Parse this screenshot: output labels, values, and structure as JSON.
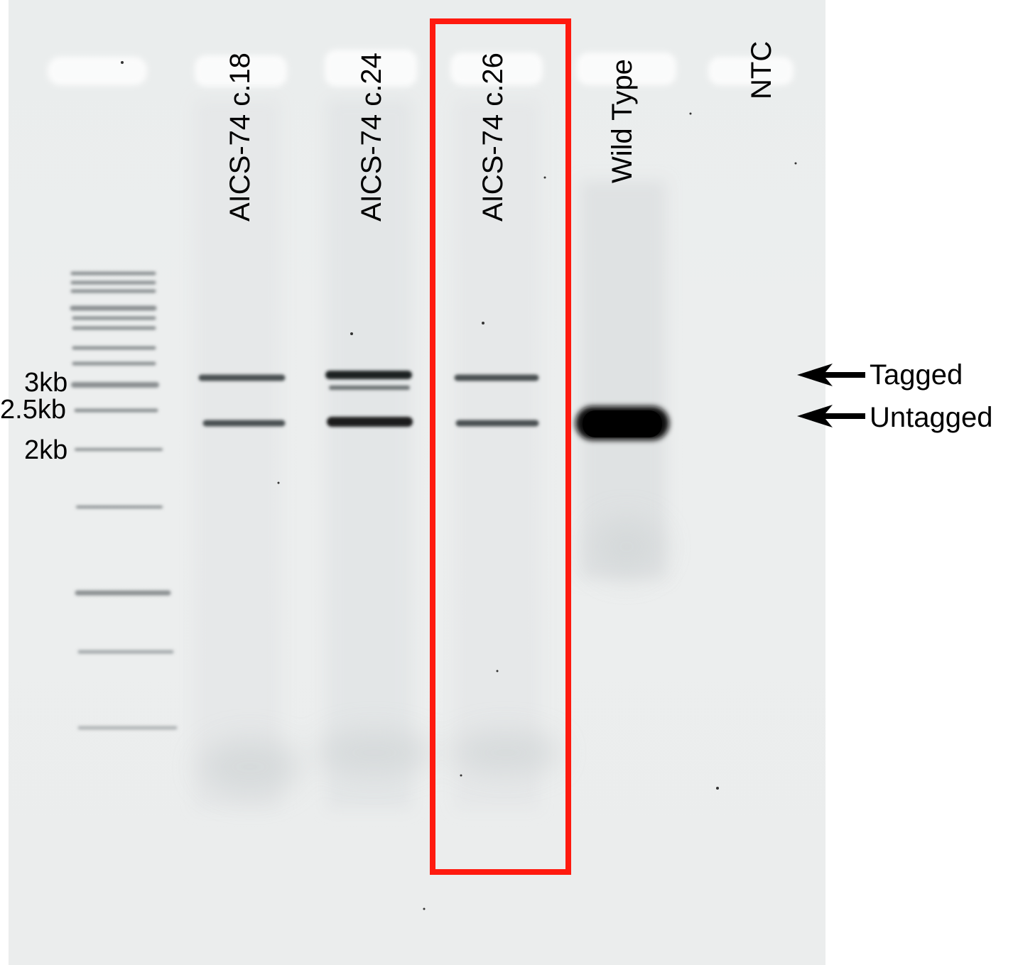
{
  "lanes": [
    {
      "label": "AICS-74 c.18"
    },
    {
      "label": "AICS-74 c.24"
    },
    {
      "label": "AICS-74 c.26"
    },
    {
      "label": "Wild Type"
    },
    {
      "label": "NTC"
    }
  ],
  "ladder_sizes": [
    {
      "label": "3kb"
    },
    {
      "label": "2.5kb"
    },
    {
      "label": "2kb"
    }
  ],
  "band_annotations": [
    {
      "label": "Tagged"
    },
    {
      "label": "Untagged"
    }
  ],
  "colors": {
    "highlight_box": "#ff1a0f",
    "gel_background": "#ebeded",
    "band": "#1a1a1a"
  },
  "highlighted_lane": "AICS-74 c.26"
}
